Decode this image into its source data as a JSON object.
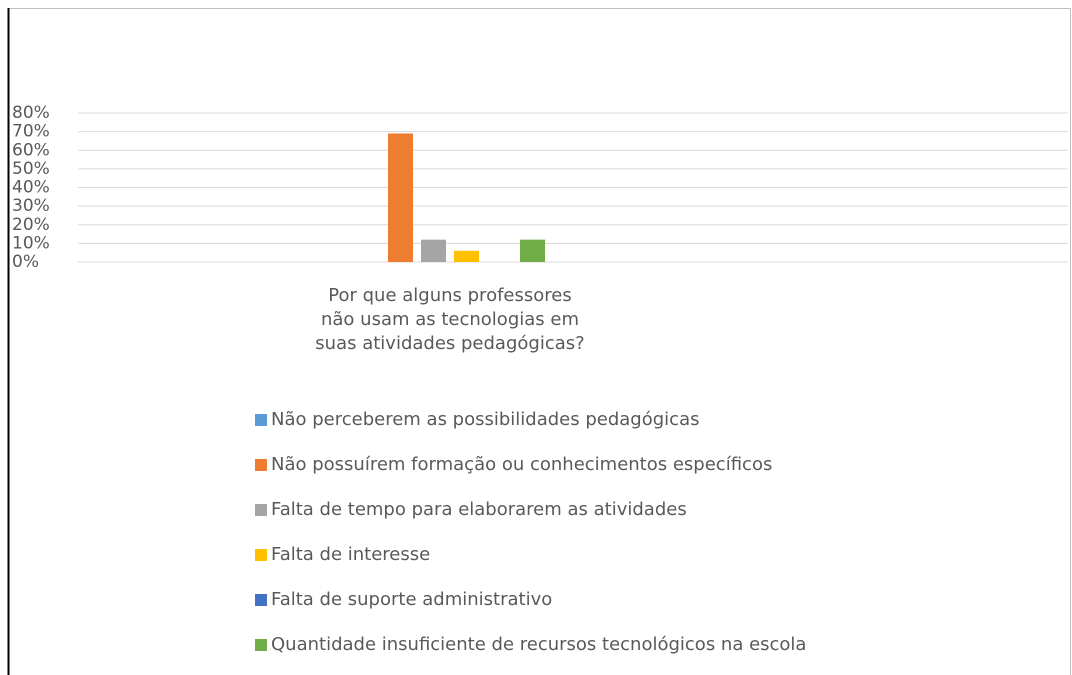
{
  "chart_data": {
    "type": "bar",
    "categories": [
      "Por que alguns professores não usam as tecnologias em suas atividades pedagógicas?"
    ],
    "series": [
      {
        "name": "Não perceberem as possibilidades pedagógicas",
        "color": "#5b9bd5",
        "values": [
          0
        ]
      },
      {
        "name": "Não possuírem formação ou conhecimentos específicos",
        "color": "#ed7d31",
        "values": [
          69
        ]
      },
      {
        "name": "Falta de tempo para elaborarem as atividades",
        "color": "#a5a5a5",
        "values": [
          12
        ]
      },
      {
        "name": "Falta de interesse",
        "color": "#ffc000",
        "values": [
          6
        ]
      },
      {
        "name": "Falta de suporte administrativo",
        "color": "#4472c4",
        "values": [
          0
        ]
      },
      {
        "name": "Quantidade insuficiente de recursos tecnológicos na escola",
        "color": "#70ad47",
        "values": [
          12
        ]
      }
    ],
    "ylim": [
      0,
      80
    ],
    "yticks": [
      {
        "value": 0,
        "label": "0%"
      },
      {
        "value": 10,
        "label": "10%"
      },
      {
        "value": 20,
        "label": "20%"
      },
      {
        "value": 30,
        "label": "30%"
      },
      {
        "value": 40,
        "label": "40%"
      },
      {
        "value": 50,
        "label": "50%"
      },
      {
        "value": 60,
        "label": "60%"
      },
      {
        "value": 70,
        "label": "70%"
      },
      {
        "value": 80,
        "label": "80%"
      }
    ],
    "grid": true,
    "legend": "bottom"
  }
}
